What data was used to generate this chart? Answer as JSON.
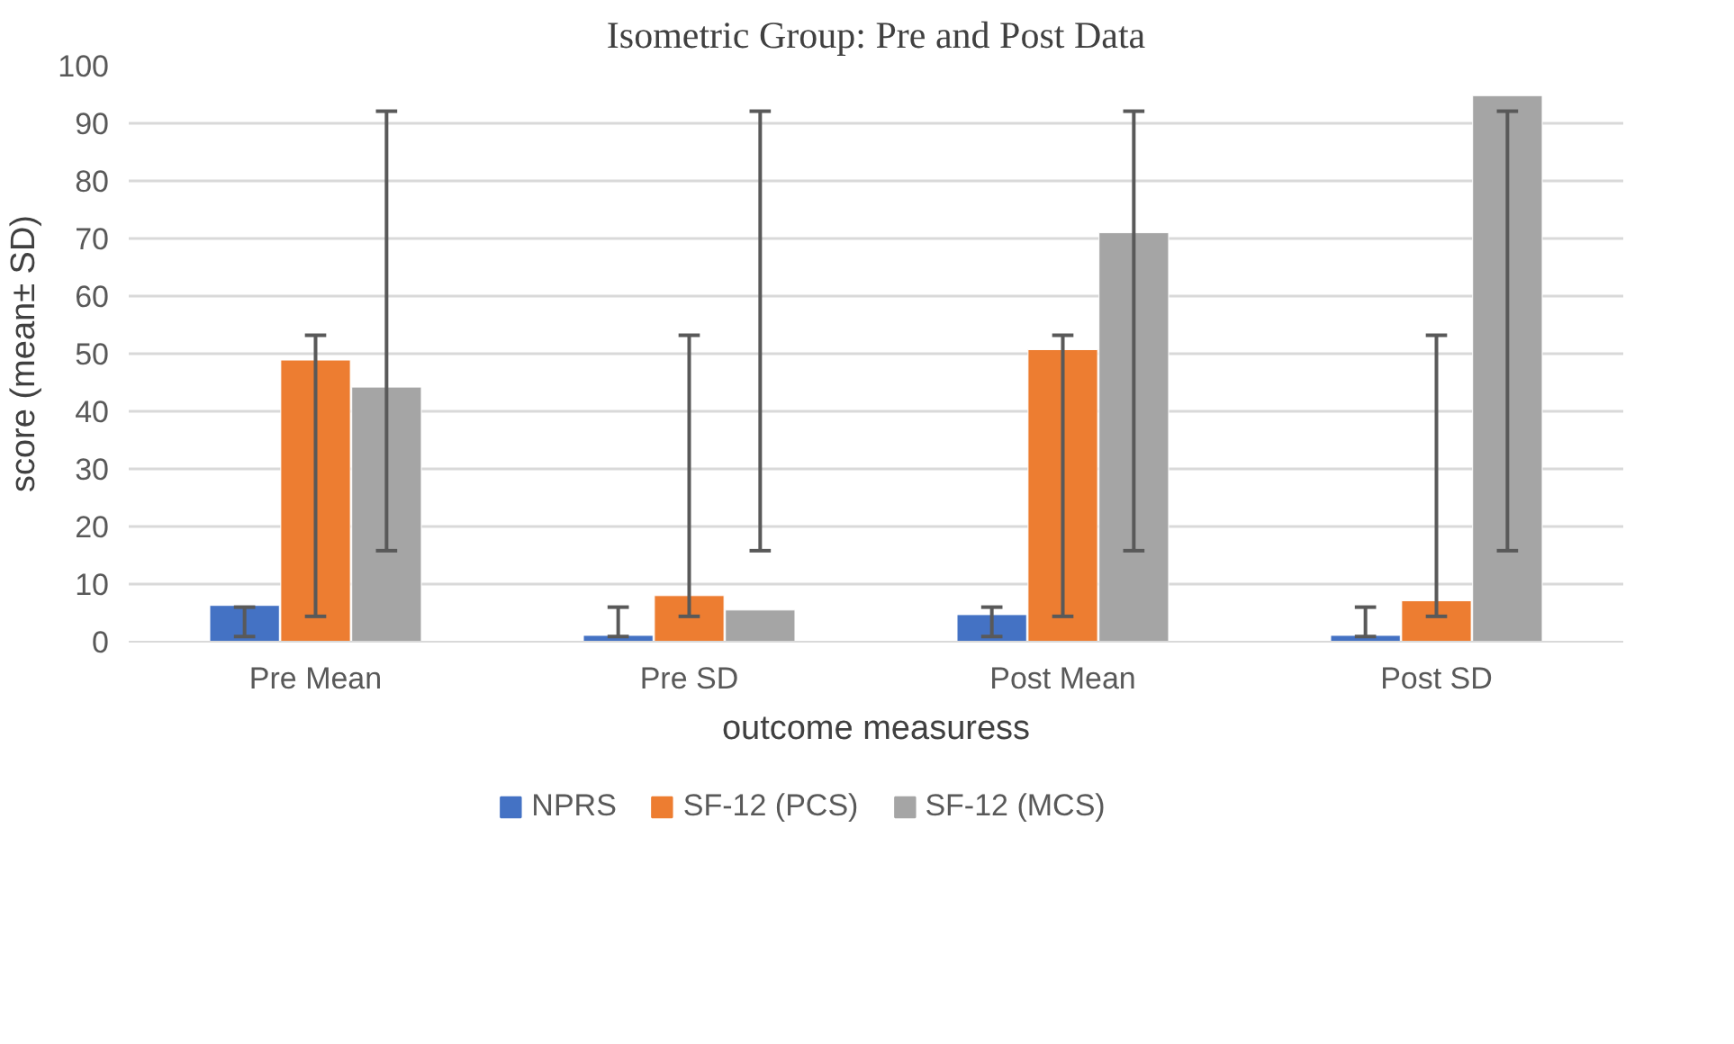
{
  "chart_data": {
    "type": "bar",
    "title": "Isometric Group: Pre and Post Data",
    "xlabel": "outcome measuress",
    "ylabel": "score (mean± SD)",
    "categories": [
      "Pre Mean",
      "Pre SD",
      "Post Mean",
      "Post SD"
    ],
    "series": [
      {
        "name": "NPRS",
        "color": "#4472c4",
        "values": [
          6.3,
          1.1,
          4.7,
          1.1
        ],
        "errors": [
          [
            0.9,
            6.0
          ],
          [
            0.9,
            6.0
          ],
          [
            0.9,
            6.0
          ],
          [
            0.9,
            6.0
          ]
        ]
      },
      {
        "name": "SF-12 (PCS)",
        "color": "#ed7d31",
        "values": [
          48.9,
          8.0,
          50.7,
          7.1
        ],
        "errors": [
          [
            4.4,
            53.2
          ],
          [
            4.4,
            53.2
          ],
          [
            4.4,
            53.2
          ],
          [
            4.4,
            53.2
          ]
        ]
      },
      {
        "name": "SF-12 (MCS)",
        "color": "#a5a5a5",
        "values": [
          44.2,
          5.5,
          71.0,
          94.8
        ],
        "errors": [
          [
            15.8,
            92.1
          ],
          [
            15.8,
            92.1
          ],
          [
            15.8,
            92.1
          ],
          [
            15.8,
            92.1
          ]
        ]
      }
    ],
    "ylim": [
      0,
      100
    ],
    "yticks": [
      0,
      10,
      20,
      30,
      40,
      50,
      60,
      70,
      80,
      90,
      100
    ],
    "grid": "y",
    "legend": "bottom"
  }
}
